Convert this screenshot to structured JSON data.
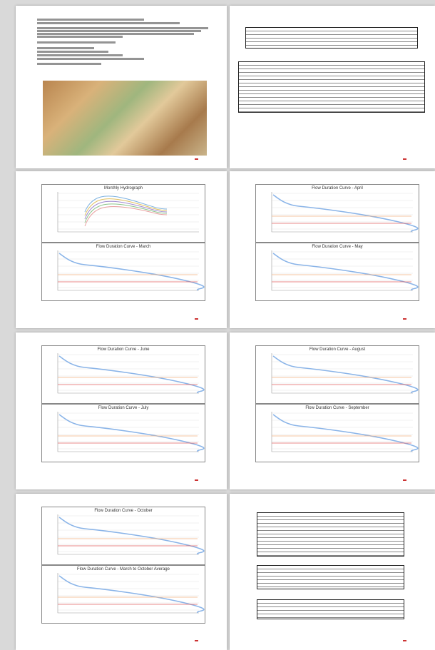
{
  "charts": [
    {
      "title": "Monthly Hydrograph"
    },
    {
      "title": "Flow Duration Curve - March"
    },
    {
      "title": "Flow Duration Curve - April"
    },
    {
      "title": "Flow Duration Curve - May"
    },
    {
      "title": "Flow Duration Curve - June"
    },
    {
      "title": "Flow Duration Curve - July"
    },
    {
      "title": "Flow Duration Curve - August"
    },
    {
      "title": "Flow Duration Curve - September"
    },
    {
      "title": "Flow Duration Curve - October"
    },
    {
      "title": "Flow Duration Curve - March to October Average"
    }
  ]
}
